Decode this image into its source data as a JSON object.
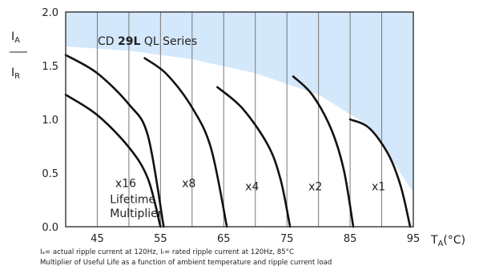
{
  "chart_data": {
    "type": "line",
    "title_parts": {
      "prefix": "CD ",
      "bold": "29L",
      "suffix": " QL Series"
    },
    "ylabel_top": "I",
    "ylabel_top_sub": "A",
    "ylabel_bottom": "I",
    "ylabel_bottom_sub": "R",
    "xlabel_main": "T",
    "xlabel_sub": "A",
    "xlabel_unit": "(°C)",
    "xlim": [
      40,
      95
    ],
    "ylim": [
      0.0,
      2.0
    ],
    "x_ticks": [
      {
        "value": 45,
        "label": "45"
      },
      {
        "value": 55,
        "label": "55"
      },
      {
        "value": 65,
        "label": "65"
      },
      {
        "value": 75,
        "label": "75"
      },
      {
        "value": 85,
        "label": "85"
      },
      {
        "value": 95,
        "label": "95"
      }
    ],
    "y_ticks": [
      {
        "value": 0.0,
        "label": "0.0"
      },
      {
        "value": 0.5,
        "label": "0.5"
      },
      {
        "value": 1.0,
        "label": "1.0"
      },
      {
        "value": 1.5,
        "label": "1.5"
      },
      {
        "value": 2.0,
        "label": "2.0"
      }
    ],
    "vertical_grid_x": [
      45,
      50,
      55,
      60,
      65,
      70,
      75,
      80,
      85,
      90
    ],
    "region_boundary": [
      [
        40,
        1.68
      ],
      [
        50,
        1.64
      ],
      [
        60,
        1.56
      ],
      [
        70,
        1.43
      ],
      [
        80,
        1.23
      ],
      [
        88,
        0.94
      ],
      [
        95,
        0.32
      ]
    ],
    "series": [
      {
        "label": "x16",
        "points": [
          [
            40,
            1.23
          ],
          [
            45,
            1.04
          ],
          [
            50,
            0.74
          ],
          [
            53,
            0.45
          ],
          [
            55,
            0.0
          ]
        ]
      },
      {
        "label": "x16",
        "points": [
          [
            40,
            1.6
          ],
          [
            45,
            1.43
          ],
          [
            50,
            1.14
          ],
          [
            53,
            0.85
          ],
          [
            55.5,
            0.0
          ]
        ]
      },
      {
        "label": "x8",
        "points": [
          [
            52.5,
            1.57
          ],
          [
            56,
            1.42
          ],
          [
            60,
            1.11
          ],
          [
            63,
            0.73
          ],
          [
            65.5,
            0.0
          ]
        ]
      },
      {
        "label": "x4",
        "points": [
          [
            64,
            1.3
          ],
          [
            68,
            1.1
          ],
          [
            72,
            0.76
          ],
          [
            74,
            0.44
          ],
          [
            75.5,
            0.0
          ]
        ]
      },
      {
        "label": "x2",
        "points": [
          [
            76,
            1.4
          ],
          [
            79,
            1.23
          ],
          [
            82,
            0.91
          ],
          [
            84,
            0.53
          ],
          [
            85.5,
            0.0
          ]
        ]
      },
      {
        "label": "x1",
        "points": [
          [
            85,
            1.0
          ],
          [
            88,
            0.92
          ],
          [
            91,
            0.68
          ],
          [
            93,
            0.38
          ],
          [
            94.5,
            0.0
          ]
        ]
      }
    ],
    "multiplier_labels": [
      {
        "text": "x16",
        "x": 49.5,
        "y": 0.37
      },
      {
        "text": "x8",
        "x": 59.5,
        "y": 0.37
      },
      {
        "text": "x4",
        "x": 69.5,
        "y": 0.34
      },
      {
        "text": "x2",
        "x": 79.5,
        "y": 0.34
      },
      {
        "text": "x1",
        "x": 89.5,
        "y": 0.34
      }
    ],
    "annotation": {
      "line1": "Lifetime",
      "line2": "Multiplier",
      "x": 47,
      "y1": 0.22,
      "y2": 0.09
    },
    "colors": {
      "shade": "#d3e8fb",
      "curve": "#111111",
      "grid": "#777777",
      "axis": "#333333"
    }
  },
  "footnote": {
    "line1": "Iₐ= actual ripple current at 120Hz, Iᵣ= rated ripple current at 120Hz, 85°C",
    "line2": "Multiplier of Useful Life as a function of ambient temperature and ripple current load"
  }
}
